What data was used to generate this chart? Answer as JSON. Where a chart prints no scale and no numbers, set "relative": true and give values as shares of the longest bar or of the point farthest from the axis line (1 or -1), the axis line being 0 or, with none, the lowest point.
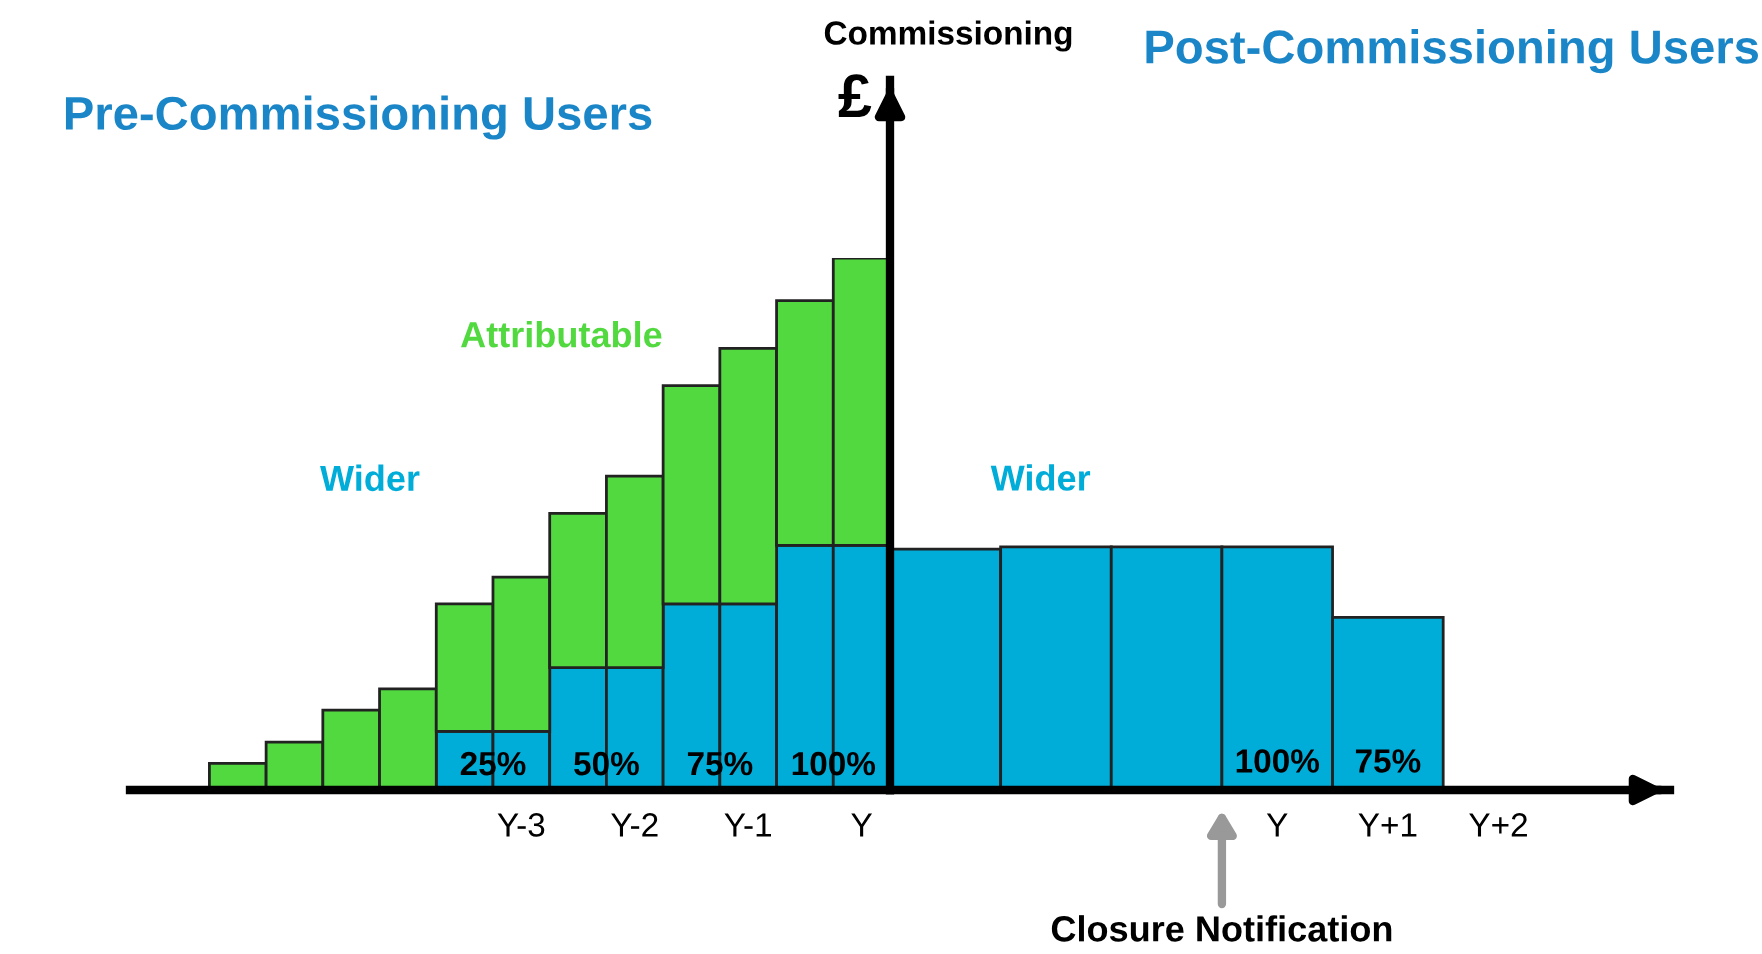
{
  "chart_data": [
    {
      "type": "bar",
      "title": "Pre-Commissioning Users",
      "relative": true,
      "stacked": true,
      "grid": false,
      "legend": false,
      "categories": [
        null,
        null,
        null,
        null,
        null,
        "Y-3",
        null,
        "Y-2",
        null,
        "Y-1",
        null,
        "Y"
      ],
      "annotations": [
        {
          "text": "25%",
          "x": "Y-3",
          "y": 0
        },
        {
          "text": "50%",
          "x": "Y-2",
          "y": 0
        },
        {
          "text": "75%",
          "x": "Y-1",
          "y": 0
        },
        {
          "text": "100%",
          "x": "Y",
          "y": 0
        }
      ],
      "series": [
        {
          "name": "Wider",
          "color": "#00acd8",
          "values": [
            0,
            0,
            0,
            0,
            0.11,
            0.11,
            0.23,
            0.23,
            0.35,
            0.35,
            0.46,
            0.46
          ]
        },
        {
          "name": "Attributable",
          "color": "#52d93f",
          "values": [
            0.05,
            0.09,
            0.15,
            0.19,
            0.24,
            0.29,
            0.29,
            0.36,
            0.41,
            0.48,
            0.46,
            0.54
          ]
        }
      ]
    },
    {
      "type": "bar",
      "title": "Post-Commissioning Users",
      "ylabel": "£",
      "relative": true,
      "grid": false,
      "legend": false,
      "categories": [
        null,
        null,
        null,
        "Y",
        "Y+1",
        "Y+2"
      ],
      "annotations": [
        "Commissioning",
        "Closure Notification",
        {
          "text": "100%",
          "x": "Y",
          "y": 0
        },
        {
          "text": "75%",
          "x": "Y+1",
          "y": 0
        }
      ],
      "series": [
        {
          "name": "Wider",
          "color": "#00acd8",
          "values": [
            0.99,
            1,
            1,
            1,
            0.71,
            null
          ]
        }
      ]
    }
  ]
}
